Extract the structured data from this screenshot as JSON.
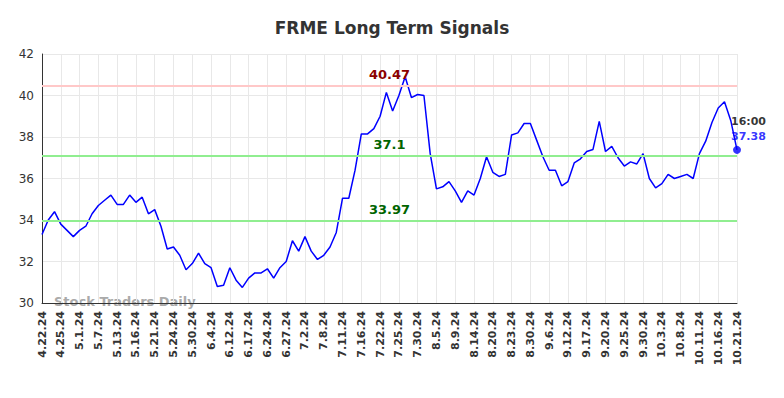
{
  "chart_data": {
    "type": "line",
    "title": "FRME Long Term Signals",
    "watermark": "Stock Traders Daily",
    "categories": [
      "4.22.24",
      null,
      null,
      "4.25.24",
      null,
      null,
      "5.1.24",
      null,
      null,
      "5.7.24",
      null,
      null,
      "5.13.24",
      null,
      null,
      "5.16.24",
      null,
      null,
      "5.21.24",
      null,
      null,
      "5.24.24",
      null,
      null,
      "5.30.24",
      null,
      null,
      "6.4.24",
      null,
      null,
      "6.12.24",
      null,
      null,
      "6.17.24",
      null,
      null,
      "6.24.24",
      null,
      null,
      "6.27.24",
      null,
      null,
      "7.2.24",
      null,
      null,
      "7.8.24",
      null,
      null,
      "7.11.24",
      null,
      null,
      "7.16.24",
      null,
      null,
      "7.22.24",
      null,
      null,
      "7.25.24",
      null,
      null,
      "7.30.24",
      null,
      null,
      "8.5.24",
      null,
      null,
      "8.9.24",
      null,
      null,
      "8.14.24",
      null,
      null,
      "8.20.24",
      null,
      null,
      "8.23.24",
      null,
      null,
      "8.30.24",
      null,
      null,
      "9.6.24",
      null,
      null,
      "9.12.24",
      null,
      null,
      "9.17.24",
      null,
      null,
      "9.20.24",
      null,
      null,
      "9.25.24",
      null,
      null,
      "9.30.24",
      null,
      null,
      "10.3.24",
      null,
      null,
      "10.8.24",
      null,
      null,
      "10.11.24",
      null,
      null,
      "10.16.24",
      null,
      null,
      "10.21.24"
    ],
    "series": [
      {
        "name": "FRME",
        "color": "#0000ff",
        "values": [
          33.3,
          34.0,
          34.4,
          33.8,
          33.5,
          33.2,
          33.5,
          33.7,
          34.3,
          34.7,
          34.95,
          35.2,
          34.75,
          34.75,
          35.2,
          34.85,
          35.1,
          34.3,
          34.5,
          33.7,
          32.6,
          32.7,
          32.3,
          31.6,
          31.9,
          32.4,
          31.9,
          31.7,
          30.8,
          30.85,
          31.7,
          31.1,
          30.75,
          31.2,
          31.45,
          31.45,
          31.65,
          31.2,
          31.7,
          32.0,
          33.0,
          32.5,
          33.2,
          32.5,
          32.1,
          32.3,
          32.7,
          33.4,
          35.05,
          35.05,
          36.4,
          38.15,
          38.15,
          38.4,
          39.0,
          40.15,
          39.25,
          40.0,
          40.9,
          39.9,
          40.05,
          40.0,
          37.2,
          35.5,
          35.6,
          35.85,
          35.4,
          34.85,
          35.4,
          35.2,
          36.0,
          37.05,
          36.3,
          36.1,
          36.2,
          38.1,
          38.2,
          38.65,
          38.65,
          37.85,
          37.05,
          36.4,
          36.4,
          35.65,
          35.85,
          36.75,
          36.95,
          37.3,
          37.4,
          38.75,
          37.3,
          37.55,
          37.0,
          36.6,
          36.8,
          36.7,
          37.2,
          36.0,
          35.55,
          35.75,
          36.2,
          36.0,
          36.1,
          36.2,
          36.0,
          37.2,
          37.8,
          38.7,
          39.4,
          39.7,
          38.8,
          37.38
        ]
      }
    ],
    "signal_lines": [
      {
        "value": 40.47,
        "color": "#ffc8c8",
        "label_color": "#8b0000"
      },
      {
        "value": 37.1,
        "color": "#90ee90",
        "label_color": "#006400"
      },
      {
        "value": 33.97,
        "color": "#90ee90",
        "label_color": "#006400"
      }
    ],
    "last_point_label": "16:00",
    "ylim": [
      30,
      42
    ],
    "yticks": [
      30,
      32,
      34,
      36,
      38,
      40,
      42
    ],
    "grid": true
  }
}
